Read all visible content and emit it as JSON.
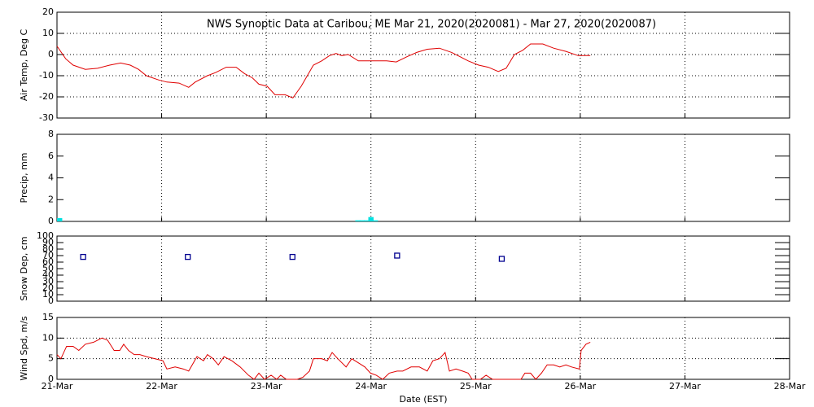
{
  "chart_data": [
    {
      "type": "line",
      "title": "NWS Synoptic Data at Caribou, ME   Mar 21, 2020(2020081) - Mar 27, 2020(2020087)",
      "ylabel": "Air Temp, Deg C",
      "xlim": [
        0,
        168
      ],
      "ylim": [
        -30,
        20
      ],
      "yticks": [
        -30,
        -20,
        -10,
        0,
        10,
        20
      ],
      "grid": "both",
      "color": "#e00000",
      "x": [
        0,
        2,
        3.7,
        6.5,
        9.3,
        12.1,
        14.6,
        16.8,
        18.7,
        20.5,
        23.3,
        25.2,
        28,
        30.2,
        31.7,
        34.5,
        36.4,
        38.8,
        41.1,
        43,
        44.8,
        46.3,
        48.2,
        50,
        52.3,
        54.1,
        56,
        58.8,
        60.7,
        62.5,
        64,
        65.3,
        66.8,
        69.1,
        72.8,
        75.6,
        77.8,
        80.3,
        82.5,
        84.9,
        87.7,
        90.5,
        92.4,
        94.3,
        96.7,
        98.9,
        101.2,
        103,
        104.9,
        106.8,
        108.6,
        111.4,
        113.9,
        116.7,
        119.5,
        122.3
      ],
      "values": [
        4,
        -2,
        -5,
        -7,
        -6.5,
        -5,
        -4,
        -5,
        -7,
        -10,
        -12,
        -13,
        -13.5,
        -15.5,
        -13,
        -10,
        -8.5,
        -6,
        -6,
        -9,
        -11,
        -14,
        -15,
        -19,
        -19,
        -20.5,
        -15,
        -5,
        -3,
        -0.5,
        0.5,
        -0.5,
        0,
        -3,
        -3,
        -3,
        -3.5,
        -1,
        1,
        2.5,
        3,
        1,
        -1,
        -3,
        -5,
        -6,
        -8,
        -6.5,
        0,
        2,
        5,
        5,
        3,
        1.5,
        -0.5,
        -0.5
      ]
    },
    {
      "type": "bar",
      "ylabel": "Precip, mm",
      "xlim": [
        0,
        168
      ],
      "ylim": [
        0,
        8
      ],
      "yticks": [
        0,
        2,
        4,
        6,
        8
      ],
      "grid": "x",
      "color": "#00e0e0",
      "x": [
        0,
        69,
        70,
        71,
        72,
        73
      ],
      "values": [
        0.3,
        0.1,
        0.1,
        0.1,
        0.4,
        0.1
      ]
    },
    {
      "type": "scatter",
      "ylabel": "Snow Dep, cm",
      "xlim": [
        0,
        168
      ],
      "ylim": [
        0,
        100
      ],
      "yticks": [
        0,
        10,
        20,
        30,
        40,
        50,
        60,
        70,
        80,
        90,
        100
      ],
      "grid": "x",
      "color": "#000090",
      "x": [
        6,
        30,
        54,
        78,
        102
      ],
      "values": [
        68,
        68,
        68,
        70,
        65
      ]
    },
    {
      "type": "line",
      "ylabel": "Wind Spd, m/s",
      "xlabel": "Date (EST)",
      "xlim": [
        0,
        168
      ],
      "ylim": [
        0,
        15
      ],
      "yticks": [
        0,
        5,
        10,
        15
      ],
      "grid": "both",
      "color": "#e00000",
      "xticks": [
        {
          "value": 0,
          "label": "21-Mar"
        },
        {
          "value": 24,
          "label": "22-Mar"
        },
        {
          "value": 48,
          "label": "23-Mar"
        },
        {
          "value": 72,
          "label": "24-Mar"
        },
        {
          "value": 96,
          "label": "25-Mar"
        },
        {
          "value": 120,
          "label": "26-Mar"
        },
        {
          "value": 144,
          "label": "27-Mar"
        },
        {
          "value": 168,
          "label": "28-Mar"
        }
      ],
      "x": [
        0,
        0.9,
        2.2,
        3.7,
        5,
        6.5,
        8.4,
        10.3,
        11.6,
        13.1,
        14.4,
        15.3,
        16.4,
        17.7,
        19,
        20.5,
        22.4,
        24.3,
        25.2,
        27.1,
        29,
        30.2,
        32.1,
        33.6,
        34.5,
        35.8,
        37,
        38.3,
        40.1,
        42,
        43.9,
        45.2,
        46.3,
        47.6,
        49.1,
        50.4,
        51.3,
        52.6,
        55.1,
        56.4,
        57.9,
        58.8,
        60.7,
        62,
        63.1,
        64.4,
        66.3,
        67.6,
        69.1,
        70.6,
        71.9,
        73.2,
        74.7,
        76.2,
        78,
        79.3,
        81.2,
        83.1,
        84.9,
        86.2,
        87.7,
        89,
        90,
        91.5,
        93,
        94.3,
        95.2,
        97.1,
        98.4,
        99.9,
        101.7,
        106.4,
        107.3,
        108.6,
        109.8,
        111.1,
        112.4,
        113.9,
        115.3,
        116.7,
        118,
        119.8,
        120.2,
        121.3,
        122.3
      ],
      "values": [
        6,
        5,
        8,
        8,
        7,
        8.5,
        9,
        10,
        9.5,
        7,
        7,
        8.5,
        7,
        6,
        6,
        5.5,
        5,
        4.5,
        2.5,
        3,
        2.5,
        2,
        5.5,
        4.5,
        6,
        5,
        3.5,
        5.5,
        4.5,
        3,
        1,
        0,
        1.5,
        0,
        1,
        0,
        1,
        0,
        0,
        0.5,
        2,
        5,
        5,
        4.5,
        6.5,
        5,
        3,
        5,
        4,
        3,
        1.5,
        1,
        0,
        1.5,
        2,
        2,
        3,
        3,
        2,
        4.5,
        5,
        6.5,
        2,
        2.5,
        2,
        1.5,
        0,
        0,
        1,
        0,
        0,
        0,
        1.5,
        1.5,
        0,
        1.5,
        3.5,
        3.5,
        3,
        3.5,
        3,
        2.5,
        7,
        8.5,
        9
      ]
    }
  ]
}
